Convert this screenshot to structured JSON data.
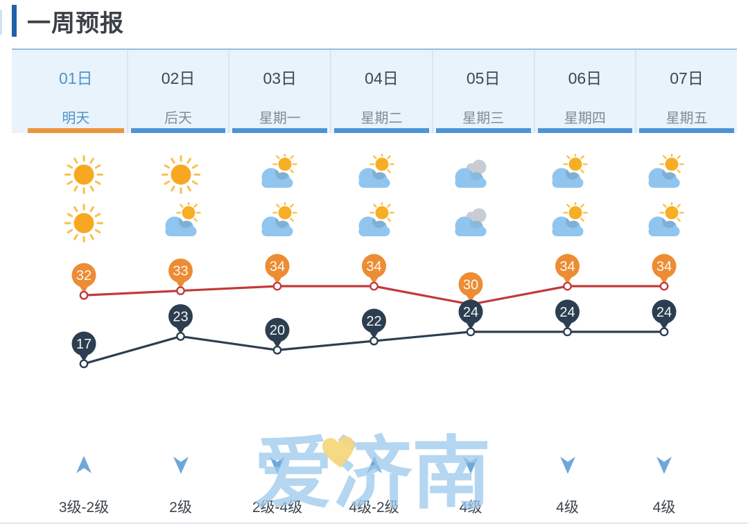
{
  "header": {
    "title": "一周预报"
  },
  "days": [
    {
      "date": "01日",
      "weekday": "明天",
      "selected": true,
      "day_icon": "sunny",
      "night_icon": "sunny",
      "high": 32,
      "low": 17,
      "wind_direction": "up",
      "wind_level": "3级-2级"
    },
    {
      "date": "02日",
      "weekday": "后天",
      "selected": false,
      "day_icon": "sunny",
      "night_icon": "partly-cloudy",
      "high": 33,
      "low": 23,
      "wind_direction": "down",
      "wind_level": "2级"
    },
    {
      "date": "03日",
      "weekday": "星期一",
      "selected": false,
      "day_icon": "partly-cloudy",
      "night_icon": "partly-cloudy",
      "high": 34,
      "low": 20,
      "wind_direction": "down",
      "wind_level": "2级-4级"
    },
    {
      "date": "04日",
      "weekday": "星期二",
      "selected": false,
      "day_icon": "partly-cloudy",
      "night_icon": "partly-cloudy",
      "high": 34,
      "low": 22,
      "wind_direction": "up",
      "wind_level": "4级-2级"
    },
    {
      "date": "05日",
      "weekday": "星期三",
      "selected": false,
      "day_icon": "cloudy",
      "night_icon": "cloudy",
      "high": 30,
      "low": 24,
      "wind_direction": "down",
      "wind_level": "4级"
    },
    {
      "date": "06日",
      "weekday": "星期四",
      "selected": false,
      "day_icon": "partly-cloudy",
      "night_icon": "partly-cloudy",
      "high": 34,
      "low": 24,
      "wind_direction": "down",
      "wind_level": "4级"
    },
    {
      "date": "07日",
      "weekday": "星期五",
      "selected": false,
      "day_icon": "partly-cloudy",
      "night_icon": "partly-cloudy",
      "high": 34,
      "low": 24,
      "wind_direction": "down",
      "wind_level": "4级"
    }
  ],
  "chart_data": {
    "type": "line",
    "categories": [
      "01日",
      "02日",
      "03日",
      "04日",
      "05日",
      "06日",
      "07日"
    ],
    "series": [
      {
        "name": "high-temperature",
        "values": [
          32,
          33,
          34,
          34,
          30,
          34,
          34
        ],
        "line_color": "#c23a3a",
        "marker_color": "#ed8c33"
      },
      {
        "name": "low-temperature",
        "values": [
          17,
          23,
          20,
          22,
          24,
          24,
          24
        ],
        "line_color": "#2c3e50",
        "marker_color": "#2c3e50"
      }
    ],
    "title": "",
    "xlabel": "",
    "ylabel": "",
    "ylim": [
      15,
      36
    ],
    "grid": false,
    "legend": false,
    "marker_style": "balloon pin with value label above each point"
  },
  "watermark": {
    "text": "爱济南",
    "text_color": "#9cc9ec",
    "heart_color": "#f5d77e"
  },
  "colors": {
    "accent_bar": "#1e62a8",
    "tab_background": "#e9f3fb",
    "tab_selected_text": "#4e94cb",
    "tab_selected_underline": "#e8963c",
    "tab_underline": "#4e94d5",
    "sun": "#f8a820",
    "sun_rays": "#f9bf4a",
    "cloud": "#90c5ef",
    "gray_cloud": "#c9cdd3",
    "wind_arrow": "#6fa7d8"
  }
}
